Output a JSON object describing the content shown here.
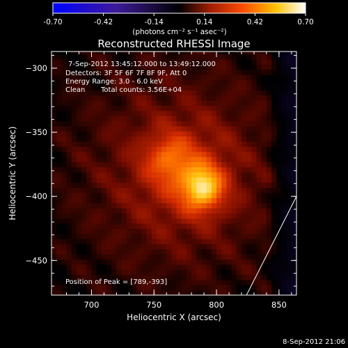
{
  "page": {
    "footer_date": "8-Sep-2012 21:06"
  },
  "colorbar": {
    "ticks": [
      "-0.70",
      "-0.42",
      "-0.14",
      "0.14",
      "0.42",
      "0.70"
    ],
    "range": [
      -0.7,
      0.7
    ],
    "units_label": "(photons cm⁻² s⁻¹ asec⁻²)",
    "colormap": "blue-black-red-yellow-white"
  },
  "chart_data": {
    "type": "heatmap",
    "title": "Reconstructed RHESSI Image",
    "xlabel": "Heliocentric X (arcsec)",
    "ylabel": "Heliocentric Y (arcsec)",
    "xlim": [
      668,
      864
    ],
    "ylim": [
      -477,
      -287
    ],
    "x_ticks": [
      "700",
      "750",
      "800",
      "850"
    ],
    "y_ticks": [
      "-300",
      "-350",
      "-400",
      "-450"
    ],
    "peak": {
      "x": 789,
      "y": -393,
      "value": 0.7
    },
    "secondary_source": {
      "x": 762,
      "y": -370,
      "value": 0.45
    },
    "limb_line": [
      [
        824,
        -477
      ],
      [
        864,
        -400
      ]
    ],
    "annotations": {
      "time_range": "7-Sep-2012 13:45:12.000 to 13:49:12.000",
      "detectors": "Detectors: 3F 5F 6F 7F 8F 9F, Att 0",
      "energy": "Energy Range: 3.0 - 6.0 keV",
      "clean": "Clean",
      "total_counts": "Total counts: 3.56E+04",
      "peak_position": "Position of Peak = [789,-393]"
    }
  }
}
